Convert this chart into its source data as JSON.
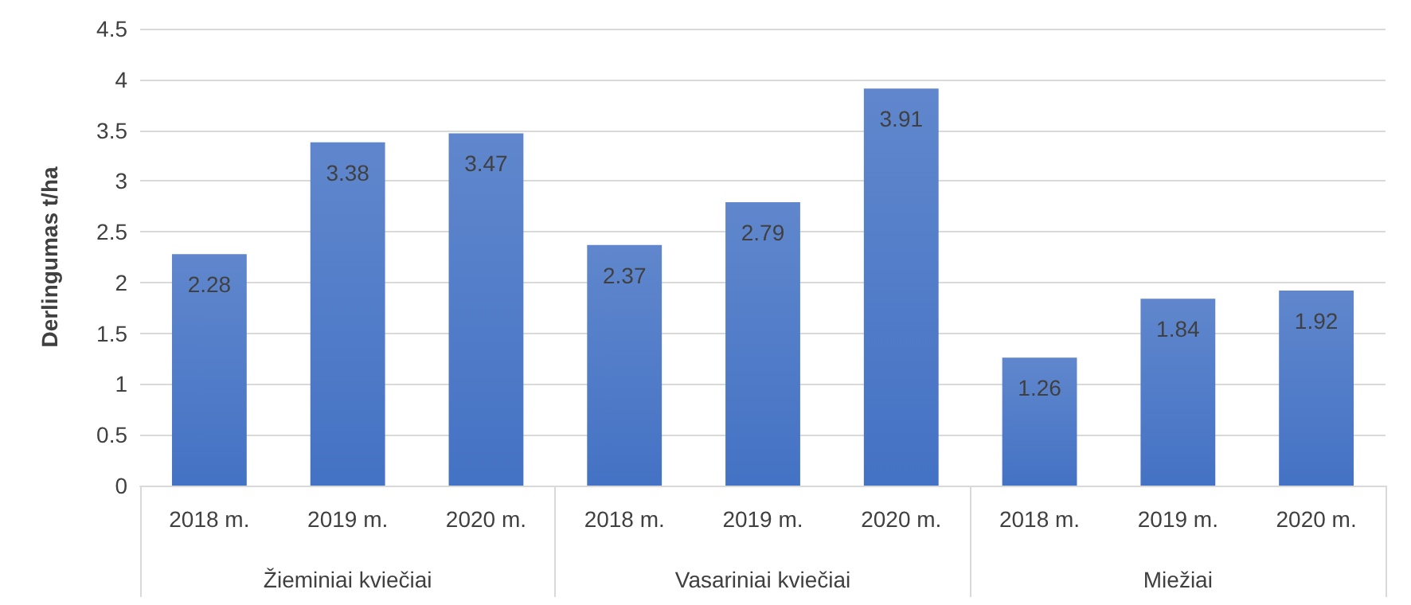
{
  "chart_data": {
    "type": "bar",
    "ylabel": "Derlingumas t/ha",
    "categories": [
      "2018 m.",
      "2019 m.",
      "2020 m.",
      "2018 m.",
      "2019 m.",
      "2020 m.",
      "2018 m.",
      "2019 m.",
      "2020 m."
    ],
    "annotations": [
      "Žieminiai kviečiai",
      "Vasariniai kviečiai",
      "Miežiai"
    ],
    "values": [
      2.28,
      3.38,
      3.47,
      2.37,
      2.79,
      3.91,
      1.26,
      1.84,
      1.92
    ],
    "color": "#4472c4",
    "ylim": [
      0,
      4.5
    ],
    "yticks": [
      0,
      0.5,
      1,
      1.5,
      2,
      2.5,
      3,
      3.5,
      4,
      4.5
    ],
    "grid": "y",
    "data_labels": true
  }
}
